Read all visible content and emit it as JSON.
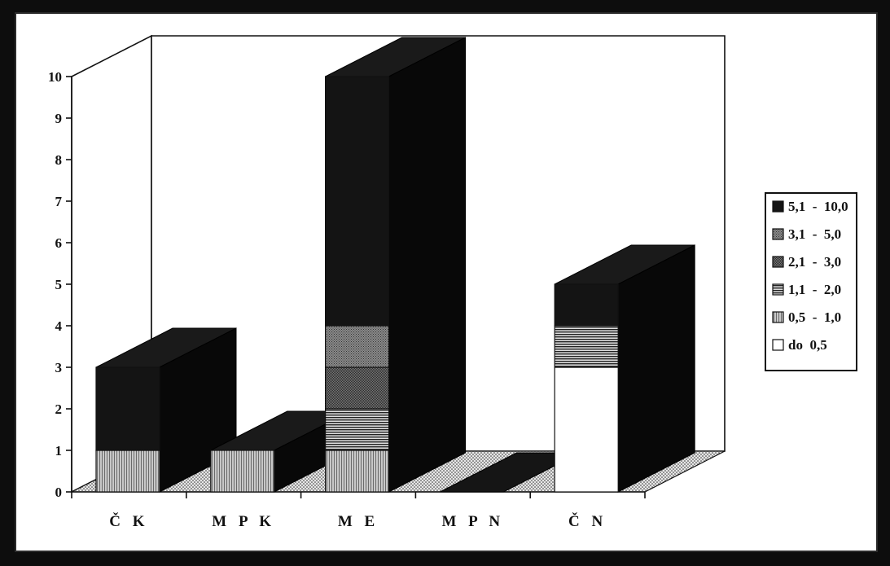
{
  "chart_data": {
    "type": "bar",
    "stacked": true,
    "three_d": true,
    "categories": [
      "Č K",
      "M P K",
      "M E",
      "M P N",
      "Č N"
    ],
    "ylim": [
      0,
      10
    ],
    "yticks": [
      0,
      1,
      2,
      3,
      4,
      5,
      6,
      7,
      8,
      9,
      10
    ],
    "legend_position": "right",
    "series": [
      {
        "name": "do  0,5",
        "values": [
          0,
          0,
          0,
          0,
          3
        ],
        "color": "#ffffff",
        "pattern": "none"
      },
      {
        "name": "0,5  -  1,0",
        "values": [
          1,
          1,
          1,
          0,
          0
        ],
        "color": "#bdbdbd",
        "pattern": "vertical"
      },
      {
        "name": "1,1  -  2,0",
        "values": [
          0,
          0,
          1,
          0,
          1
        ],
        "color": "#3a3a3a",
        "pattern": "horizontal"
      },
      {
        "name": "2,1  -  3,0",
        "values": [
          0,
          0,
          1,
          0,
          0
        ],
        "color": "#555555",
        "pattern": "dense"
      },
      {
        "name": "3,1  -  5,0",
        "values": [
          0,
          0,
          1,
          0,
          0
        ],
        "color": "#666666",
        "pattern": "medium"
      },
      {
        "name": "5,1  -  10,0",
        "values": [
          2,
          0,
          6,
          0,
          1
        ],
        "color": "#141414",
        "pattern": "solid"
      }
    ],
    "title": "",
    "xlabel": "",
    "ylabel": ""
  }
}
